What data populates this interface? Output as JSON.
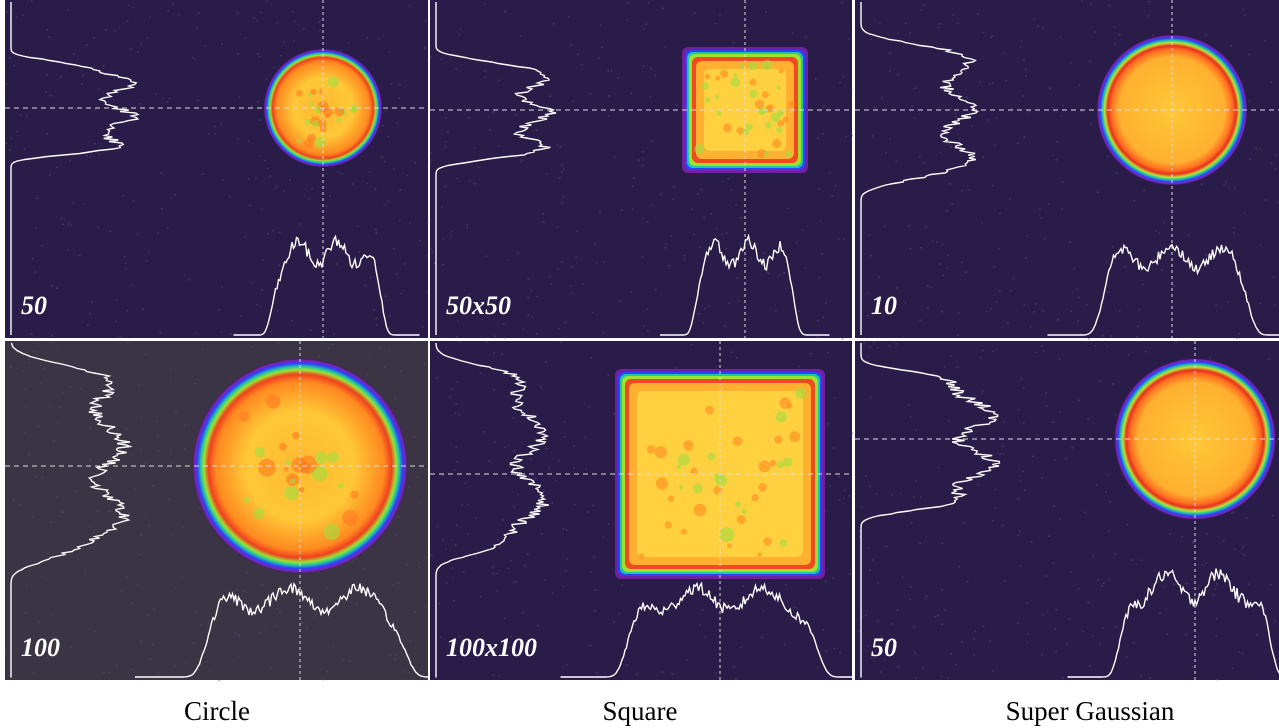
{
  "panels": [
    {
      "label": "50"
    },
    {
      "label": "50x50"
    },
    {
      "label": "10"
    },
    {
      "label": "100"
    },
    {
      "label": "100x100"
    },
    {
      "label": "50"
    }
  ],
  "captions": [
    "Circle",
    "Square",
    "Super Gaussian"
  ]
}
